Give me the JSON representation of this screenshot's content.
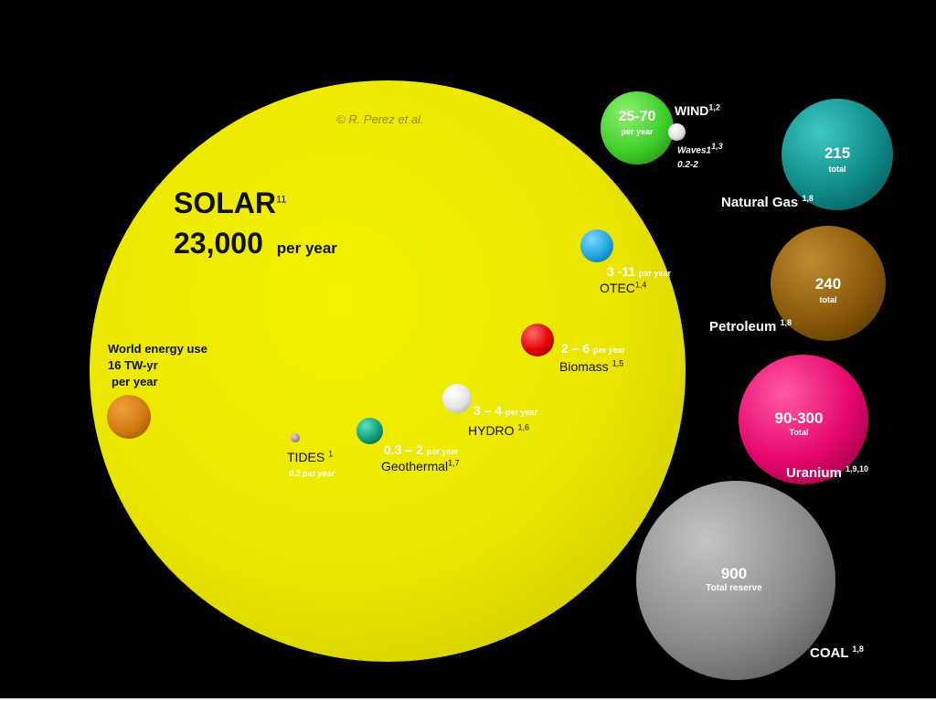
{
  "credit": "© R. Perez et al.",
  "solar": {
    "name": "SOLAR",
    "ref": "11",
    "value": "23,000",
    "unit": "per year",
    "color": "#e8e400"
  },
  "world": {
    "line1": "World energy use",
    "line2": "16 TW-yr",
    "line3": "per year",
    "color": "#d97a0a"
  },
  "wind": {
    "value": "25-70",
    "unit": "per year",
    "name": "WIND",
    "ref": "1,2",
    "color": "#3fcf2a"
  },
  "waves": {
    "name": "Waves1",
    "ref": "1,3",
    "value": "0.2-2",
    "color": "#f0f0f0"
  },
  "otec": {
    "value": "3 -11",
    "unit": "per year",
    "name": "OTEC",
    "ref": "1,4",
    "color": "#1fa6e0"
  },
  "biomass": {
    "value": "2 – 6",
    "unit": "per year",
    "name": "Biomass",
    "ref": "1,5",
    "color": "#e10000"
  },
  "hydro": {
    "value": "3 – 4",
    "unit": "per year",
    "name": "HYDRO",
    "ref": "1,6",
    "color": "#eeeeee"
  },
  "geothermal": {
    "value": "0.3 – 2",
    "unit": "per year",
    "name": "Geothermal",
    "ref": "1,7",
    "color": "#0e9d7a"
  },
  "tides": {
    "name": "TIDES",
    "ref": "1",
    "value": "0.3 per year",
    "color": "#a88aa0"
  },
  "natural_gas": {
    "value": "215",
    "unit": "total",
    "name": "Natural Gas",
    "ref": "1,8",
    "color": "#0f8a88"
  },
  "petroleum": {
    "value": "240",
    "unit": "total",
    "name": "Petroleum",
    "ref": "1,8",
    "color": "#8a5a0a"
  },
  "uranium": {
    "value": "90-300",
    "unit": "Total",
    "name": "Uranium",
    "ref": "1,9,10",
    "color": "#e4066c"
  },
  "coal": {
    "value": "900",
    "unit": "Total reserve",
    "name": "COAL",
    "ref": "1,8",
    "color": "#8a8a8a"
  }
}
